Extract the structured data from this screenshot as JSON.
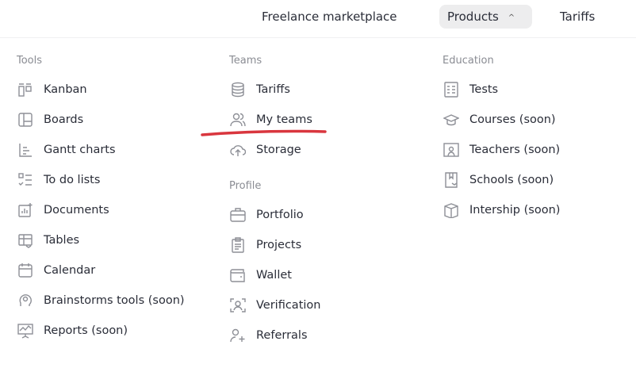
{
  "header": {
    "nav": [
      {
        "label": "Freelance marketplace"
      },
      {
        "label": "Products",
        "expanded": true
      },
      {
        "label": "Tariffs"
      }
    ]
  },
  "columns": [
    {
      "sections": [
        {
          "title": "Tools",
          "items": [
            {
              "label": "Kanban",
              "icon": "kanban-icon"
            },
            {
              "label": "Boards",
              "icon": "boards-icon"
            },
            {
              "label": "Gantt charts",
              "icon": "gantt-icon"
            },
            {
              "label": "To do lists",
              "icon": "todo-icon"
            },
            {
              "label": "Documents",
              "icon": "documents-icon"
            },
            {
              "label": "Tables",
              "icon": "tables-icon"
            },
            {
              "label": "Calendar",
              "icon": "calendar-icon"
            },
            {
              "label": "Brainstorms tools (soon)",
              "icon": "brain-icon"
            },
            {
              "label": "Reports (soon)",
              "icon": "reports-icon"
            }
          ]
        }
      ]
    },
    {
      "sections": [
        {
          "title": "Teams",
          "items": [
            {
              "label": "Tariffs",
              "icon": "coins-icon"
            },
            {
              "label": "My teams",
              "icon": "users-icon"
            },
            {
              "label": "Storage",
              "icon": "cloud-icon"
            }
          ]
        },
        {
          "title": "Profile",
          "items": [
            {
              "label": "Portfolio",
              "icon": "briefcase-icon"
            },
            {
              "label": "Projects",
              "icon": "clipboard-icon"
            },
            {
              "label": "Wallet",
              "icon": "wallet-icon"
            },
            {
              "label": "Verification",
              "icon": "verification-icon"
            },
            {
              "label": "Referrals",
              "icon": "referrals-icon"
            }
          ]
        }
      ]
    },
    {
      "sections": [
        {
          "title": "Education",
          "items": [
            {
              "label": "Tests",
              "icon": "tests-icon"
            },
            {
              "label": "Courses (soon)",
              "icon": "graduation-cap-icon"
            },
            {
              "label": "Teachers (soon)",
              "icon": "teacher-icon"
            },
            {
              "label": "Schools (soon)",
              "icon": "school-icon"
            },
            {
              "label": "Intership (soon)",
              "icon": "box-icon"
            }
          ]
        }
      ]
    }
  ],
  "annotation_color": "#d9363e"
}
